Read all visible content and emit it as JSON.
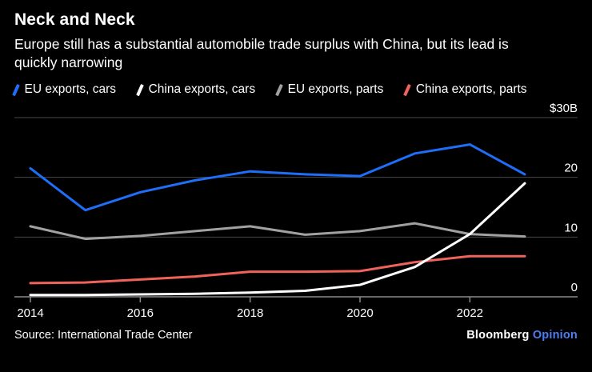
{
  "header": {
    "title": "Neck and Neck",
    "subtitle": "Europe still has a substantial automobile trade surplus with China, but its lead is quickly narrowing"
  },
  "chart_data": {
    "type": "line",
    "title": "Neck and Neck",
    "xlabel": "",
    "ylabel": "$30B",
    "ylim": [
      0,
      30
    ],
    "grid": true,
    "legend_position": "top",
    "grid_color": "#474747",
    "axis_color": "#8a8a8a",
    "x": [
      2014,
      2015,
      2016,
      2017,
      2018,
      2019,
      2020,
      2021,
      2022,
      2023
    ],
    "x_ticks": [
      "2014",
      "2016",
      "2018",
      "2020",
      "2022"
    ],
    "y_ticks": [
      {
        "value": 30,
        "label": "$30B"
      },
      {
        "value": 20,
        "label": "20"
      },
      {
        "value": 10,
        "label": "10"
      },
      {
        "value": 0,
        "label": "0"
      }
    ],
    "series": [
      {
        "name": "EU exports, cars",
        "color": "#1e6ef7",
        "values": [
          21.5,
          14.5,
          17.5,
          19.5,
          21.0,
          20.5,
          20.2,
          24.0,
          25.5,
          20.5
        ]
      },
      {
        "name": "China exports, cars",
        "color": "#ffffff",
        "values": [
          0.3,
          0.3,
          0.4,
          0.5,
          0.7,
          1.0,
          2.0,
          5.0,
          10.5,
          19.0
        ]
      },
      {
        "name": "EU exports, parts",
        "color": "#a1a1a1",
        "values": [
          11.8,
          9.7,
          10.2,
          11.0,
          11.8,
          10.4,
          11.0,
          12.3,
          10.5,
          10.1
        ]
      },
      {
        "name": "China exports, parts",
        "color": "#f0625c",
        "values": [
          2.3,
          2.4,
          2.9,
          3.4,
          4.2,
          4.2,
          4.3,
          5.8,
          6.8,
          6.8
        ]
      }
    ]
  },
  "footer": {
    "source": "Source: International Trade Center",
    "brand": "Bloomberg",
    "brand_suffix": "Opinion",
    "brand_suffix_color": "#4d7cf3"
  }
}
